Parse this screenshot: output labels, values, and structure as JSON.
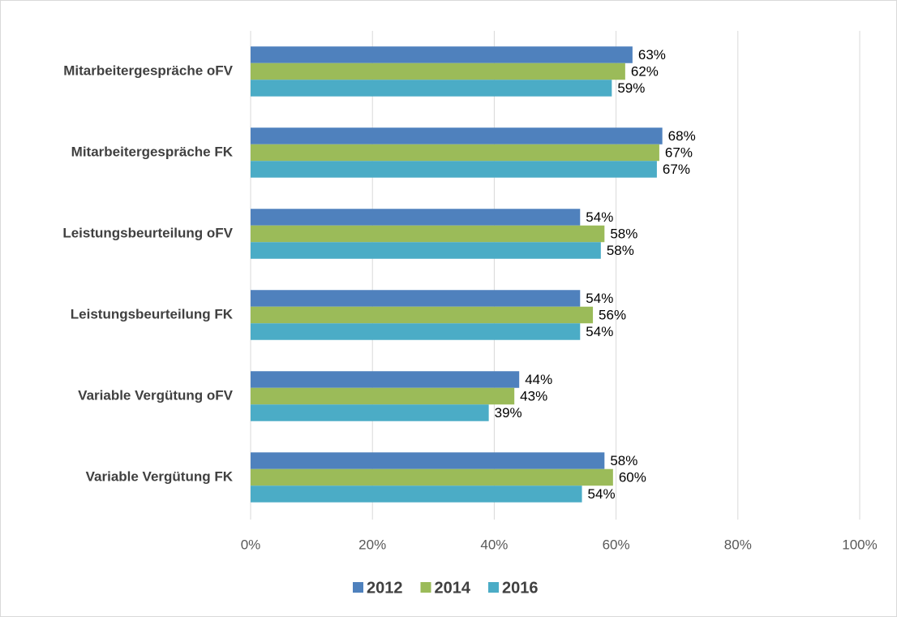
{
  "chart_data": {
    "type": "bar",
    "orientation": "horizontal",
    "categories": [
      "Mitarbeitergespräche oFV",
      "Mitarbeitergespräche FK",
      "Leistungsbeurteilung oFV",
      "Leistungsbeurteilung FK",
      "Variable Vergütung oFV",
      "Variable Vergütung FK"
    ],
    "series": [
      {
        "name": "2012",
        "color": "#4f81bd",
        "values": [
          62.7,
          67.6,
          54.1,
          54.1,
          44.1,
          58.1
        ],
        "value_labels": [
          "63%",
          "68%",
          "54%",
          "54%",
          "44%",
          "58%"
        ]
      },
      {
        "name": "2014",
        "color": "#9bbb59",
        "values": [
          61.5,
          67.1,
          58.1,
          56.2,
          43.3,
          59.5
        ],
        "value_labels": [
          "62%",
          "67%",
          "58%",
          "56%",
          "43%",
          "60%"
        ]
      },
      {
        "name": "2016",
        "color": "#4bacc6",
        "values": [
          59.3,
          66.7,
          57.5,
          54.1,
          39.1,
          54.4
        ],
        "value_labels": [
          "59%",
          "67%",
          "58%",
          "54%",
          "39%",
          "54%"
        ]
      }
    ],
    "xlim": [
      0,
      100
    ],
    "xticks": [
      {
        "value": 0,
        "label": "0%"
      },
      {
        "value": 20,
        "label": "20%"
      },
      {
        "value": 40,
        "label": "40%"
      },
      {
        "value": 60,
        "label": "60%"
      },
      {
        "value": 80,
        "label": "80%"
      },
      {
        "value": 100,
        "label": "100%"
      }
    ],
    "grid": true,
    "legend": "bottom"
  }
}
